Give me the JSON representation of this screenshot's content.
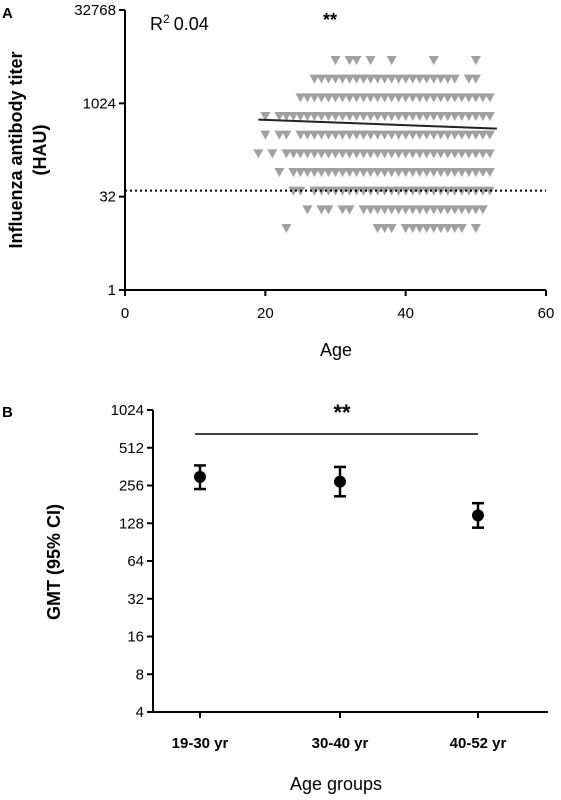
{
  "chart_data": [
    {
      "type": "scatter",
      "panel": "A",
      "xlabel": "Age",
      "ylabel_line1": "Influenza antibody titer",
      "ylabel_line2": "(HAU)",
      "xlim": [
        0,
        60
      ],
      "ylim": [
        1,
        32768
      ],
      "yscale": "log2",
      "xticks": [
        "0",
        "20",
        "40",
        "60"
      ],
      "yticks": [
        "1",
        "32",
        "1024",
        "32768"
      ],
      "annotation_r2_base": "R",
      "annotation_r2_sup": "2",
      "annotation_r2_value": "0.04",
      "significance": "**",
      "threshold_y": 40,
      "marker_color": "#a0a0a0",
      "regression": {
        "x": [
          19,
          53
        ],
        "y": [
          560,
          400
        ]
      },
      "points": [
        [
          19,
          160
        ],
        [
          20,
          320
        ],
        [
          20,
          640
        ],
        [
          21,
          160
        ],
        [
          22,
          80
        ],
        [
          22,
          320
        ],
        [
          22,
          640
        ],
        [
          23,
          10
        ],
        [
          23,
          160
        ],
        [
          23,
          320
        ],
        [
          23,
          640
        ],
        [
          24,
          40
        ],
        [
          24,
          80
        ],
        [
          24,
          160
        ],
        [
          24,
          640
        ],
        [
          25,
          40
        ],
        [
          25,
          80
        ],
        [
          25,
          160
        ],
        [
          25,
          320
        ],
        [
          25,
          640
        ],
        [
          25,
          1280
        ],
        [
          26,
          20
        ],
        [
          26,
          80
        ],
        [
          26,
          160
        ],
        [
          26,
          320
        ],
        [
          26,
          640
        ],
        [
          26,
          1280
        ],
        [
          27,
          40
        ],
        [
          27,
          80
        ],
        [
          27,
          160
        ],
        [
          27,
          320
        ],
        [
          27,
          640
        ],
        [
          27,
          1280
        ],
        [
          27,
          2560
        ],
        [
          28,
          20
        ],
        [
          28,
          40
        ],
        [
          28,
          80
        ],
        [
          28,
          160
        ],
        [
          28,
          320
        ],
        [
          28,
          640
        ],
        [
          28,
          1280
        ],
        [
          28,
          2560
        ],
        [
          29,
          20
        ],
        [
          29,
          40
        ],
        [
          29,
          80
        ],
        [
          29,
          160
        ],
        [
          29,
          320
        ],
        [
          29,
          640
        ],
        [
          29,
          1280
        ],
        [
          29,
          2560
        ],
        [
          30,
          40
        ],
        [
          30,
          80
        ],
        [
          30,
          160
        ],
        [
          30,
          320
        ],
        [
          30,
          640
        ],
        [
          30,
          1280
        ],
        [
          30,
          2560
        ],
        [
          30,
          5120
        ],
        [
          31,
          20
        ],
        [
          31,
          40
        ],
        [
          31,
          80
        ],
        [
          31,
          160
        ],
        [
          31,
          320
        ],
        [
          31,
          640
        ],
        [
          31,
          1280
        ],
        [
          31,
          2560
        ],
        [
          32,
          20
        ],
        [
          32,
          40
        ],
        [
          32,
          80
        ],
        [
          32,
          160
        ],
        [
          32,
          320
        ],
        [
          32,
          640
        ],
        [
          32,
          1280
        ],
        [
          32,
          2560
        ],
        [
          32,
          5120
        ],
        [
          33,
          40
        ],
        [
          33,
          80
        ],
        [
          33,
          160
        ],
        [
          33,
          320
        ],
        [
          33,
          640
        ],
        [
          33,
          1280
        ],
        [
          33,
          2560
        ],
        [
          33,
          5120
        ],
        [
          34,
          20
        ],
        [
          34,
          40
        ],
        [
          34,
          80
        ],
        [
          34,
          160
        ],
        [
          34,
          320
        ],
        [
          34,
          640
        ],
        [
          34,
          1280
        ],
        [
          34,
          2560
        ],
        [
          35,
          20
        ],
        [
          35,
          40
        ],
        [
          35,
          80
        ],
        [
          35,
          160
        ],
        [
          35,
          320
        ],
        [
          35,
          640
        ],
        [
          35,
          1280
        ],
        [
          35,
          2560
        ],
        [
          35,
          5120
        ],
        [
          36,
          10
        ],
        [
          36,
          20
        ],
        [
          36,
          40
        ],
        [
          36,
          80
        ],
        [
          36,
          160
        ],
        [
          36,
          320
        ],
        [
          36,
          640
        ],
        [
          36,
          1280
        ],
        [
          36,
          2560
        ],
        [
          37,
          10
        ],
        [
          37,
          20
        ],
        [
          37,
          40
        ],
        [
          37,
          80
        ],
        [
          37,
          160
        ],
        [
          37,
          320
        ],
        [
          37,
          640
        ],
        [
          37,
          1280
        ],
        [
          37,
          2560
        ],
        [
          38,
          10
        ],
        [
          38,
          20
        ],
        [
          38,
          40
        ],
        [
          38,
          80
        ],
        [
          38,
          160
        ],
        [
          38,
          320
        ],
        [
          38,
          640
        ],
        [
          38,
          1280
        ],
        [
          38,
          2560
        ],
        [
          38,
          5120
        ],
        [
          39,
          20
        ],
        [
          39,
          40
        ],
        [
          39,
          80
        ],
        [
          39,
          160
        ],
        [
          39,
          320
        ],
        [
          39,
          640
        ],
        [
          39,
          1280
        ],
        [
          39,
          2560
        ],
        [
          40,
          10
        ],
        [
          40,
          20
        ],
        [
          40,
          40
        ],
        [
          40,
          80
        ],
        [
          40,
          160
        ],
        [
          40,
          320
        ],
        [
          40,
          640
        ],
        [
          40,
          1280
        ],
        [
          40,
          2560
        ],
        [
          41,
          10
        ],
        [
          41,
          20
        ],
        [
          41,
          40
        ],
        [
          41,
          80
        ],
        [
          41,
          160
        ],
        [
          41,
          320
        ],
        [
          41,
          640
        ],
        [
          41,
          1280
        ],
        [
          41,
          2560
        ],
        [
          42,
          10
        ],
        [
          42,
          20
        ],
        [
          42,
          40
        ],
        [
          42,
          80
        ],
        [
          42,
          160
        ],
        [
          42,
          320
        ],
        [
          42,
          640
        ],
        [
          42,
          1280
        ],
        [
          42,
          2560
        ],
        [
          43,
          10
        ],
        [
          43,
          20
        ],
        [
          43,
          40
        ],
        [
          43,
          80
        ],
        [
          43,
          160
        ],
        [
          43,
          320
        ],
        [
          43,
          640
        ],
        [
          43,
          1280
        ],
        [
          43,
          2560
        ],
        [
          44,
          10
        ],
        [
          44,
          20
        ],
        [
          44,
          40
        ],
        [
          44,
          80
        ],
        [
          44,
          160
        ],
        [
          44,
          320
        ],
        [
          44,
          640
        ],
        [
          44,
          1280
        ],
        [
          44,
          2560
        ],
        [
          44,
          5120
        ],
        [
          45,
          10
        ],
        [
          45,
          20
        ],
        [
          45,
          40
        ],
        [
          45,
          80
        ],
        [
          45,
          160
        ],
        [
          45,
          320
        ],
        [
          45,
          640
        ],
        [
          45,
          1280
        ],
        [
          45,
          2560
        ],
        [
          46,
          10
        ],
        [
          46,
          20
        ],
        [
          46,
          40
        ],
        [
          46,
          80
        ],
        [
          46,
          160
        ],
        [
          46,
          320
        ],
        [
          46,
          640
        ],
        [
          46,
          1280
        ],
        [
          46,
          2560
        ],
        [
          47,
          10
        ],
        [
          47,
          20
        ],
        [
          47,
          40
        ],
        [
          47,
          80
        ],
        [
          47,
          160
        ],
        [
          47,
          320
        ],
        [
          47,
          640
        ],
        [
          47,
          1280
        ],
        [
          47,
          2560
        ],
        [
          48,
          10
        ],
        [
          48,
          20
        ],
        [
          48,
          40
        ],
        [
          48,
          80
        ],
        [
          48,
          160
        ],
        [
          48,
          320
        ],
        [
          48,
          640
        ],
        [
          48,
          1280
        ],
        [
          49,
          20
        ],
        [
          49,
          40
        ],
        [
          49,
          80
        ],
        [
          49,
          160
        ],
        [
          49,
          320
        ],
        [
          49,
          640
        ],
        [
          49,
          1280
        ],
        [
          49,
          2560
        ],
        [
          50,
          10
        ],
        [
          50,
          20
        ],
        [
          50,
          40
        ],
        [
          50,
          80
        ],
        [
          50,
          160
        ],
        [
          50,
          320
        ],
        [
          50,
          640
        ],
        [
          50,
          1280
        ],
        [
          50,
          2560
        ],
        [
          50,
          5120
        ],
        [
          51,
          20
        ],
        [
          51,
          40
        ],
        [
          51,
          80
        ],
        [
          51,
          160
        ],
        [
          51,
          320
        ],
        [
          51,
          640
        ],
        [
          51,
          1280
        ],
        [
          52,
          40
        ],
        [
          52,
          80
        ],
        [
          52,
          160
        ],
        [
          52,
          320
        ],
        [
          52,
          640
        ],
        [
          52,
          1280
        ]
      ]
    },
    {
      "type": "errorbar",
      "panel": "B",
      "xlabel": "Age groups",
      "ylabel": "GMT (95% CI)",
      "yscale": "log2",
      "ylim": [
        4,
        1024
      ],
      "yticks": [
        "4",
        "8",
        "16",
        "32",
        "64",
        "128",
        "256",
        "512",
        "1024"
      ],
      "categories": [
        "19-30 yr",
        "30-40 yr",
        "40-52 yr"
      ],
      "values": [
        300,
        275,
        148
      ],
      "ci_low": [
        240,
        210,
        118
      ],
      "ci_high": [
        370,
        360,
        185
      ],
      "significance": "**",
      "marker_color": "#000000"
    }
  ]
}
